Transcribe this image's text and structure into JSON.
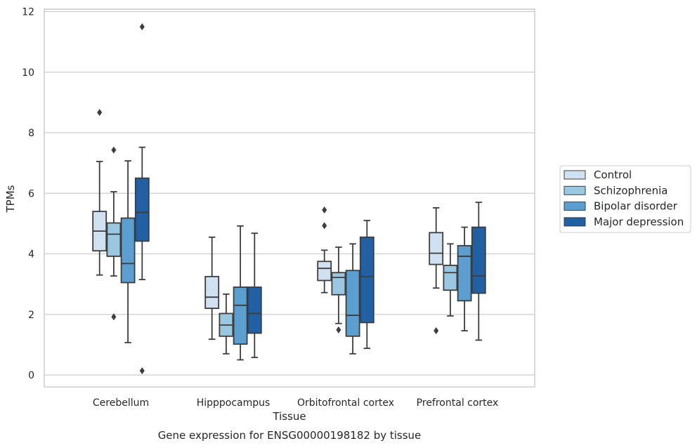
{
  "chart_data": {
    "type": "box",
    "title": "",
    "caption": "Gene expression for ENSG00000198182 by tissue",
    "xlabel": "Tissue",
    "ylabel": "TPMs",
    "ylim": [
      -0.4,
      12.1
    ],
    "yticks": [
      0,
      2,
      4,
      6,
      8,
      10,
      12
    ],
    "grid": "horizontal",
    "legend_position": "right",
    "categories": [
      "Cerebellum",
      "Hipppocampus",
      "Orbitofrontal cortex",
      "Prefrontal cortex"
    ],
    "series": [
      {
        "name": "Control",
        "color": "#d0e1f2",
        "boxes": [
          {
            "whisker_low": 3.3,
            "q1": 4.1,
            "median": 4.75,
            "q3": 5.4,
            "whisker_high": 7.05,
            "outliers": [
              8.67
            ]
          },
          {
            "whisker_low": 1.18,
            "q1": 2.2,
            "median": 2.57,
            "q3": 3.25,
            "whisker_high": 4.55,
            "outliers": []
          },
          {
            "whisker_low": 2.72,
            "q1": 3.12,
            "median": 3.52,
            "q3": 3.75,
            "whisker_high": 4.12,
            "outliers": [
              5.45,
              4.93
            ]
          },
          {
            "whisker_low": 2.87,
            "q1": 3.65,
            "median": 4.02,
            "q3": 4.7,
            "whisker_high": 5.52,
            "outliers": [
              1.46
            ]
          }
        ]
      },
      {
        "name": "Schizophrenia",
        "color": "#9ac8e0",
        "boxes": [
          {
            "whisker_low": 3.27,
            "q1": 3.92,
            "median": 4.65,
            "q3": 5.02,
            "whisker_high": 6.05,
            "outliers": [
              7.43,
              1.92
            ]
          },
          {
            "whisker_low": 0.7,
            "q1": 1.28,
            "median": 1.65,
            "q3": 2.03,
            "whisker_high": 2.67,
            "outliers": []
          },
          {
            "whisker_low": 1.7,
            "q1": 2.65,
            "median": 3.22,
            "q3": 3.38,
            "whisker_high": 4.22,
            "outliers": [
              1.49
            ]
          },
          {
            "whisker_low": 1.95,
            "q1": 2.8,
            "median": 3.38,
            "q3": 3.62,
            "whisker_high": 4.33,
            "outliers": []
          }
        ]
      },
      {
        "name": "Bipolar disorder",
        "color": "#5a9fcf",
        "boxes": [
          {
            "whisker_low": 1.07,
            "q1": 3.05,
            "median": 3.68,
            "q3": 5.18,
            "whisker_high": 7.07,
            "outliers": []
          },
          {
            "whisker_low": 0.5,
            "q1": 1.02,
            "median": 2.3,
            "q3": 2.9,
            "whisker_high": 4.92,
            "outliers": []
          },
          {
            "whisker_low": 0.7,
            "q1": 1.28,
            "median": 1.97,
            "q3": 3.45,
            "whisker_high": 4.33,
            "outliers": []
          },
          {
            "whisker_low": 1.46,
            "q1": 2.45,
            "median": 3.92,
            "q3": 4.27,
            "whisker_high": 4.88,
            "outliers": []
          }
        ]
      },
      {
        "name": "Major depression",
        "color": "#2260a4",
        "boxes": [
          {
            "whisker_low": 3.15,
            "q1": 4.42,
            "median": 5.37,
            "q3": 6.5,
            "whisker_high": 7.52,
            "outliers": [
              11.5,
              0.14
            ]
          },
          {
            "whisker_low": 0.58,
            "q1": 1.38,
            "median": 2.03,
            "q3": 2.9,
            "whisker_high": 4.68,
            "outliers": []
          },
          {
            "whisker_low": 0.88,
            "q1": 1.73,
            "median": 3.25,
            "q3": 4.55,
            "whisker_high": 5.1,
            "outliers": []
          },
          {
            "whisker_low": 1.15,
            "q1": 2.7,
            "median": 3.27,
            "q3": 4.88,
            "whisker_high": 5.7,
            "outliers": []
          }
        ]
      }
    ]
  }
}
